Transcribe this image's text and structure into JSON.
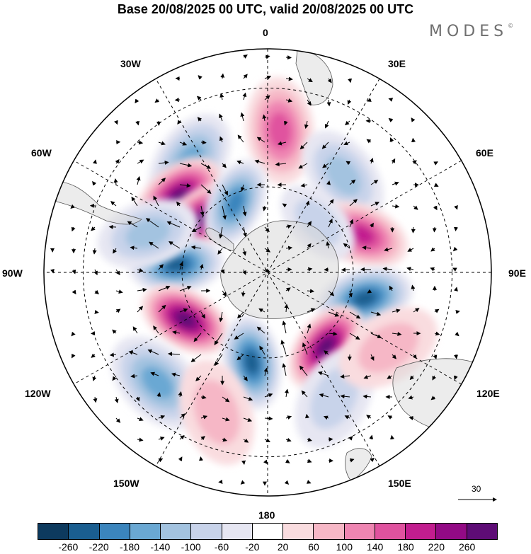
{
  "title": "Base 20/08/2025 00 UTC, valid 20/08/2025 00 UTC",
  "brand": "MODES",
  "brand_mark": "©",
  "longitude_labels": {
    "lon_0": "0",
    "lon_30e": "30E",
    "lon_60e": "60E",
    "lon_90e": "90E",
    "lon_120e": "120E",
    "lon_150e": "150E",
    "lon_180": "180",
    "lon_150w": "150W",
    "lon_120w": "120W",
    "lon_90w": "90W",
    "lon_60w": "60W",
    "lon_30w": "30W"
  },
  "reference_vector": {
    "value": "30"
  },
  "colorbar": {
    "colors": [
      "#0d3a5e",
      "#1a5e90",
      "#3b85bd",
      "#6aa8d3",
      "#a3c3e0",
      "#c8d3ea",
      "#e6e6f2",
      "#ffffff",
      "#f9dcdf",
      "#f6b7c6",
      "#ef85b2",
      "#e0529f",
      "#c21d8f",
      "#930a85",
      "#5e0c76"
    ],
    "ticks": [
      "-260",
      "-220",
      "-180",
      "-140",
      "-100",
      "-60",
      "-20",
      "20",
      "60",
      "100",
      "140",
      "180",
      "220",
      "260"
    ]
  },
  "anomaly_centers": [
    {
      "name": "center-30w-neg",
      "lon": -35,
      "lat": -44,
      "value": -150
    },
    {
      "name": "center-5e-pos",
      "lon": 5,
      "lat": -42,
      "value": 150
    },
    {
      "name": "center-35e-neg",
      "lon": 38,
      "lat": -48,
      "value": -110
    },
    {
      "name": "center-55w-pos-a",
      "lon": -50,
      "lat": -50,
      "value": 260
    },
    {
      "name": "center-55w-pos-b",
      "lon": -52,
      "lat": -60,
      "value": 260
    },
    {
      "name": "center-25w-neg",
      "lon": -25,
      "lat": -63,
      "value": -200
    },
    {
      "name": "center-70e-pos",
      "lon": 68,
      "lat": -55,
      "value": 200
    },
    {
      "name": "center-80w-neg",
      "lon": -85,
      "lat": -58,
      "value": -230
    },
    {
      "name": "center-65w-neg",
      "lon": -72,
      "lat": -47,
      "value": -100
    },
    {
      "name": "center-105e-neg",
      "lon": 105,
      "lat": -55,
      "value": -220
    },
    {
      "name": "center-120w-pos",
      "lon": -120,
      "lat": -57,
      "value": 270
    },
    {
      "name": "center-140e-pos",
      "lon": 142,
      "lat": -57,
      "value": 260
    },
    {
      "name": "center-170w-neg",
      "lon": -170,
      "lat": -58,
      "value": -250
    },
    {
      "name": "center-135w-neg",
      "lon": -135,
      "lat": -38,
      "value": -140
    },
    {
      "name": "center-150e-neg",
      "lon": 152,
      "lat": -42,
      "value": -90
    },
    {
      "name": "center-165w-pos",
      "lon": -160,
      "lat": -40,
      "value": 60
    },
    {
      "name": "center-120e-pos",
      "lon": 122,
      "lat": -42,
      "value": 90
    },
    {
      "name": "center-45e-neg",
      "lon": 45,
      "lat": -65,
      "value": -90
    }
  ]
}
